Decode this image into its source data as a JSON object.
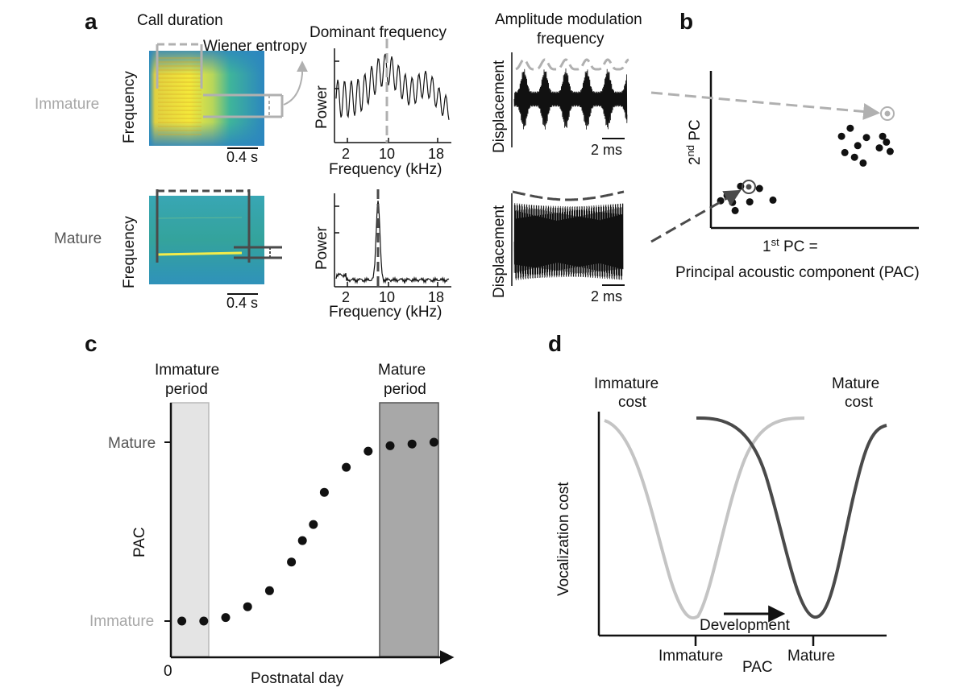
{
  "panels": {
    "a": {
      "label": "a",
      "row_labels": {
        "immature": "Immature",
        "mature": "Mature"
      },
      "spectrogram": {
        "ylabel": "Frequency",
        "call_duration": "Call duration",
        "wiener_entropy": "Wiener entropy",
        "scale_bar": "0.4 s"
      },
      "dominant_frequency": {
        "title": "Dominant frequency",
        "ylabel": "Power",
        "xlabel": "Frequency (kHz)",
        "ticks": [
          "2",
          "10",
          "18"
        ]
      },
      "amplitude_modulation": {
        "title_line1": "Amplitude modulation",
        "title_line2": "frequency",
        "ylabel": "Displacement",
        "scale_bar": "2 ms"
      }
    },
    "b": {
      "label": "b",
      "ylabel_prefix": "2",
      "ylabel_sup": "nd",
      "ylabel_suffix": " PC",
      "xlabel_prefix": "1",
      "xlabel_sup": "st",
      "xlabel_suffix": " PC =",
      "xlabel_line2": "Principal acoustic component (PAC)",
      "cluster_immature": [
        [
          0.3,
          0.56
        ],
        [
          0.45,
          0.3
        ],
        [
          0.55,
          0.72
        ],
        [
          0.72,
          0.45
        ],
        [
          0.9,
          0.68
        ],
        [
          1.15,
          0.48
        ],
        [
          0.4,
          0.44
        ],
        [
          0.18,
          0.47
        ]
      ],
      "cluster_mature": [
        [
          2.42,
          1.58
        ],
        [
          2.58,
          1.72
        ],
        [
          2.66,
          1.22
        ],
        [
          2.72,
          1.42
        ],
        [
          2.82,
          1.12
        ],
        [
          2.88,
          1.56
        ],
        [
          3.12,
          1.38
        ],
        [
          3.18,
          1.58
        ],
        [
          3.32,
          1.32
        ],
        [
          2.48,
          1.3
        ],
        [
          3.25,
          1.48
        ]
      ]
    },
    "c": {
      "label": "c",
      "immature_period": [
        "Immature",
        "period"
      ],
      "mature_period": [
        "Mature",
        "period"
      ],
      "ylabel": "PAC",
      "ytick_top": "Mature",
      "ytick_bottom": "Immature",
      "xlabel": "Postnatal day",
      "x_origin": "0",
      "points_x": [
        1,
        3,
        5,
        7,
        9,
        11,
        12,
        13,
        14,
        16,
        18,
        20,
        22,
        24
      ],
      "points_pac": [
        0.0,
        0.0,
        0.02,
        0.08,
        0.17,
        0.33,
        0.45,
        0.54,
        0.72,
        0.86,
        0.95,
        0.98,
        0.99,
        1.0
      ]
    },
    "d": {
      "label": "d",
      "immature_cost": [
        "Immature",
        "cost"
      ],
      "mature_cost": [
        "Mature",
        "cost"
      ],
      "ylabel": "Vocalization cost",
      "xtick_immature": "Immature",
      "xtick_mature": "Mature",
      "xlabel": "PAC",
      "arrow_label": "Development"
    }
  }
}
